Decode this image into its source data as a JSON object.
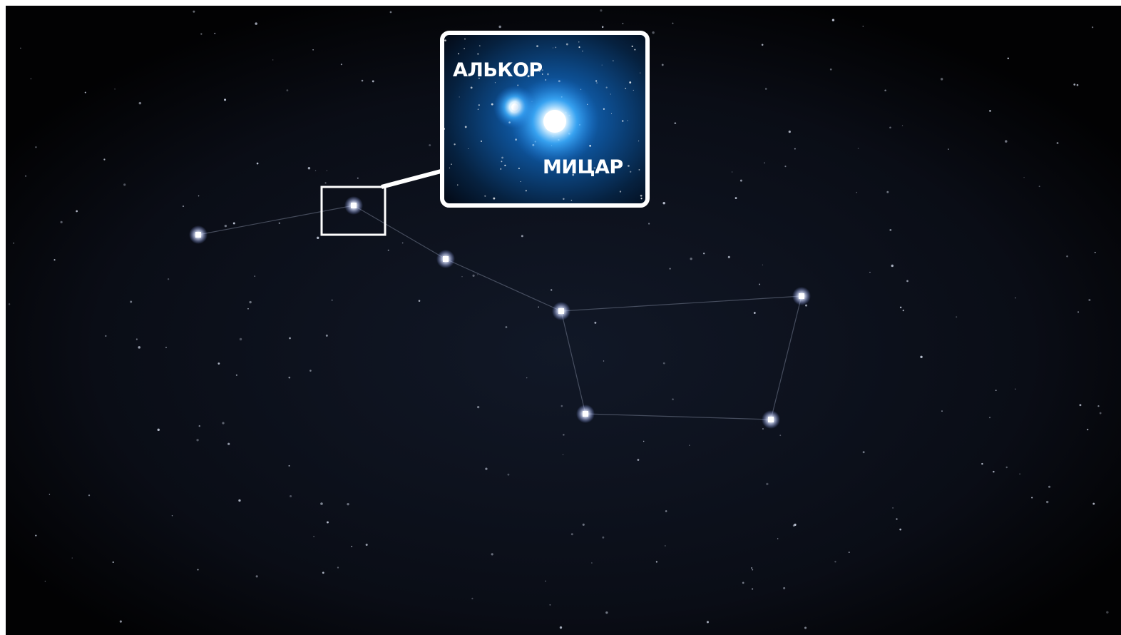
{
  "inset": {
    "labels": [
      "АЛЬКОР",
      "МИЦАР"
    ]
  }
}
